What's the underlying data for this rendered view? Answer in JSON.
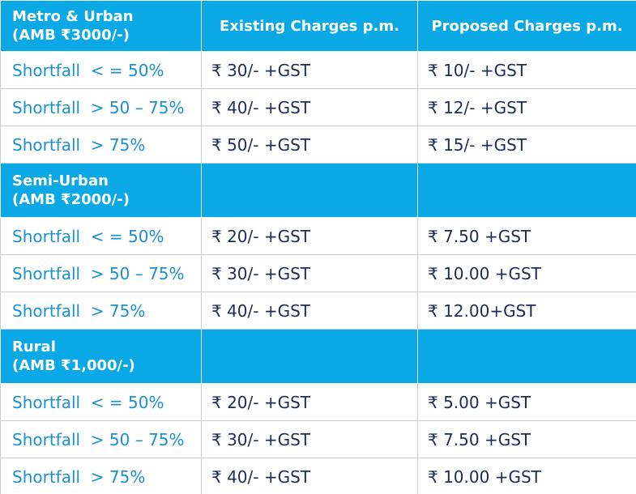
{
  "table": {
    "header_columns": [
      "Existing Charges p.m.",
      "Proposed Charges p.m."
    ],
    "sections": [
      {
        "title": [
          "Metro & Urban",
          "(AMB ₹3000/-)"
        ],
        "rows": [
          [
            "Shortfall  < = 50%",
            "₹ 30/- +GST",
            "₹ 10/- +GST"
          ],
          [
            "Shortfall  > 50 – 75%",
            "₹ 40/- +GST",
            "₹ 12/- +GST"
          ],
          [
            "Shortfall  > 75%",
            "₹ 50/- +GST",
            "₹ 15/- +GST"
          ]
        ]
      },
      {
        "title": [
          "Semi-Urban",
          "(AMB ₹2000/-)"
        ],
        "rows": [
          [
            "Shortfall  < = 50%",
            "₹ 20/- +GST",
            "₹ 7.50 +GST"
          ],
          [
            "Shortfall  > 50 – 75%",
            "₹ 30/- +GST",
            "₹ 10.00 +GST"
          ],
          [
            "Shortfall  > 75%",
            "₹ 40/- +GST",
            "₹ 12.00+GST"
          ]
        ]
      },
      {
        "title": [
          "Rural",
          "(AMB ₹1,000/-)"
        ],
        "rows": [
          [
            "Shortfall  < = 50%",
            "₹ 20/- +GST",
            "₹ 5.00 +GST"
          ],
          [
            "Shortfall  > 50 – 75%",
            "₹ 30/- +GST",
            "₹ 7.50 +GST"
          ],
          [
            "Shortfall  > 75%",
            "₹ 40/- +GST",
            "₹ 10.00 +GST"
          ]
        ]
      }
    ]
  }
}
